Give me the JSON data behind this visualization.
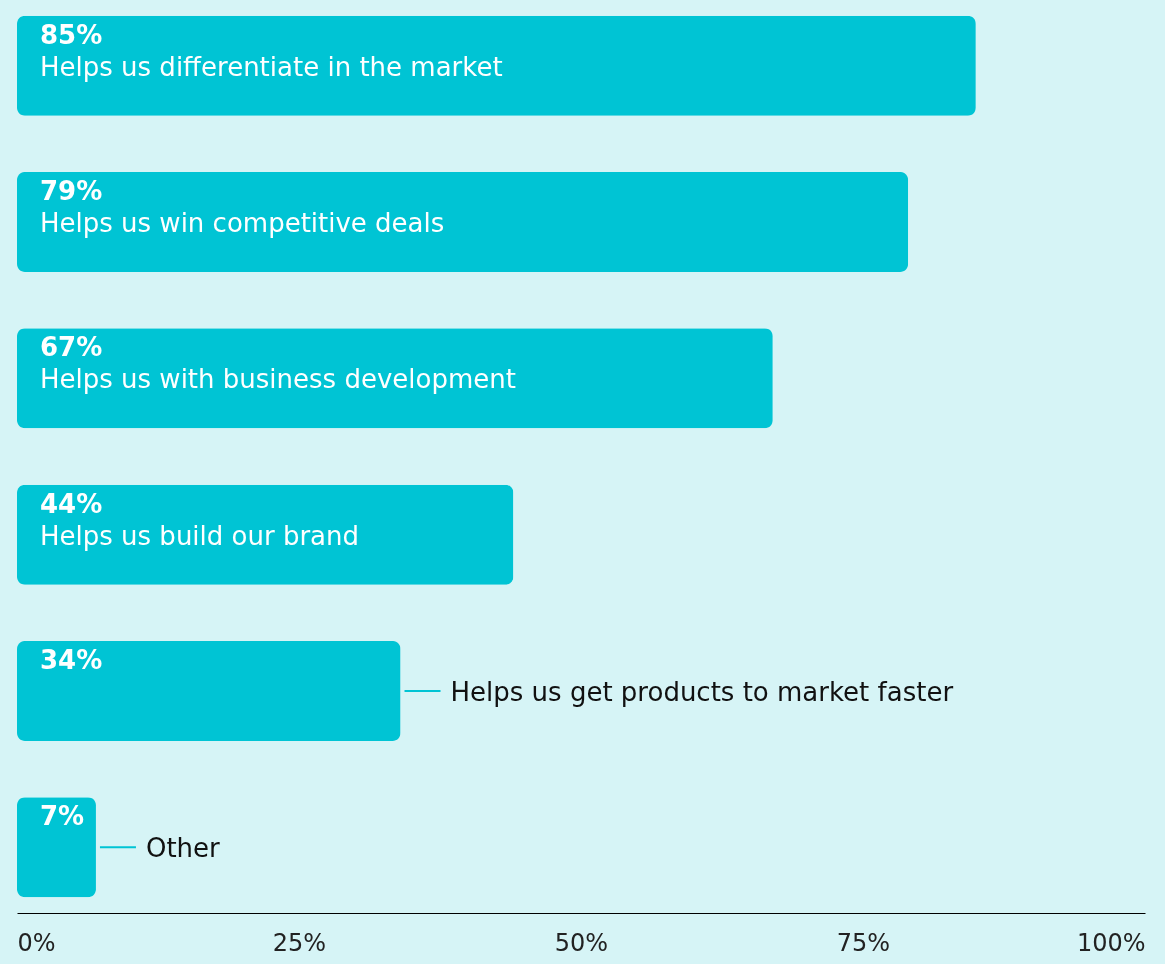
{
  "chart_data": {
    "type": "bar",
    "orientation": "horizontal",
    "categories": [
      "Helps us differentiate in the market",
      "Helps us win competitive deals",
      "Helps us with business development",
      "Helps us build our brand",
      "Helps us get products to market faster",
      "Other"
    ],
    "values": [
      85,
      79,
      67,
      44,
      34,
      7
    ],
    "value_labels": [
      "85%",
      "79%",
      "67%",
      "44%",
      "34%",
      "7%"
    ],
    "color": "#00c4d4",
    "xlim": [
      0,
      100
    ],
    "xticks": [
      {
        "value": 0,
        "label": "0%"
      },
      {
        "value": 25,
        "label": "25%"
      },
      {
        "value": 50,
        "label": "50%"
      },
      {
        "value": 75,
        "label": "75%"
      },
      {
        "value": 100,
        "label": "100%"
      }
    ],
    "grid": false,
    "tick_labels": "x"
  }
}
